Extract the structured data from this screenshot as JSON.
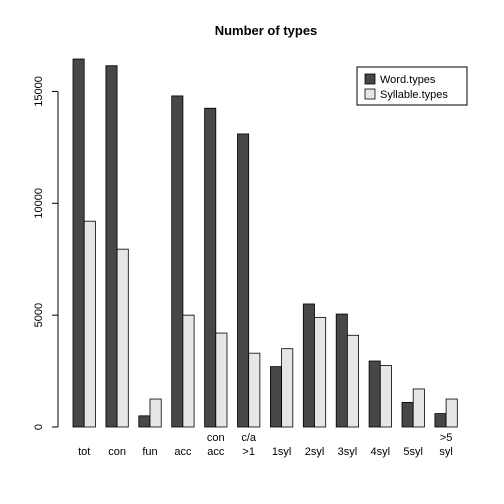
{
  "chart_data": {
    "type": "bar",
    "title": "Number of types",
    "xlabel": "",
    "ylabel": "",
    "categories": [
      "tot",
      "con",
      "fun",
      "acc",
      "con\nacc",
      "c/a\n>1",
      "1syl",
      "2syl",
      "3syl",
      "4syl",
      "5syl",
      ">5\nsyl"
    ],
    "series": [
      {
        "name": "Word.types",
        "color": "#474747",
        "values": [
          16450,
          16150,
          500,
          14800,
          14250,
          13100,
          2700,
          5500,
          5050,
          2950,
          1100,
          600
        ]
      },
      {
        "name": "Syllable.types",
        "color": "#e6e6e6",
        "values": [
          9200,
          7950,
          1250,
          5000,
          4200,
          3300,
          3500,
          4900,
          4100,
          2750,
          1700,
          1250
        ]
      }
    ],
    "ylim": [
      0,
      16450
    ],
    "yticks": [
      0,
      5000,
      10000,
      15000
    ],
    "legend_position": "top-right",
    "grid": false
  }
}
